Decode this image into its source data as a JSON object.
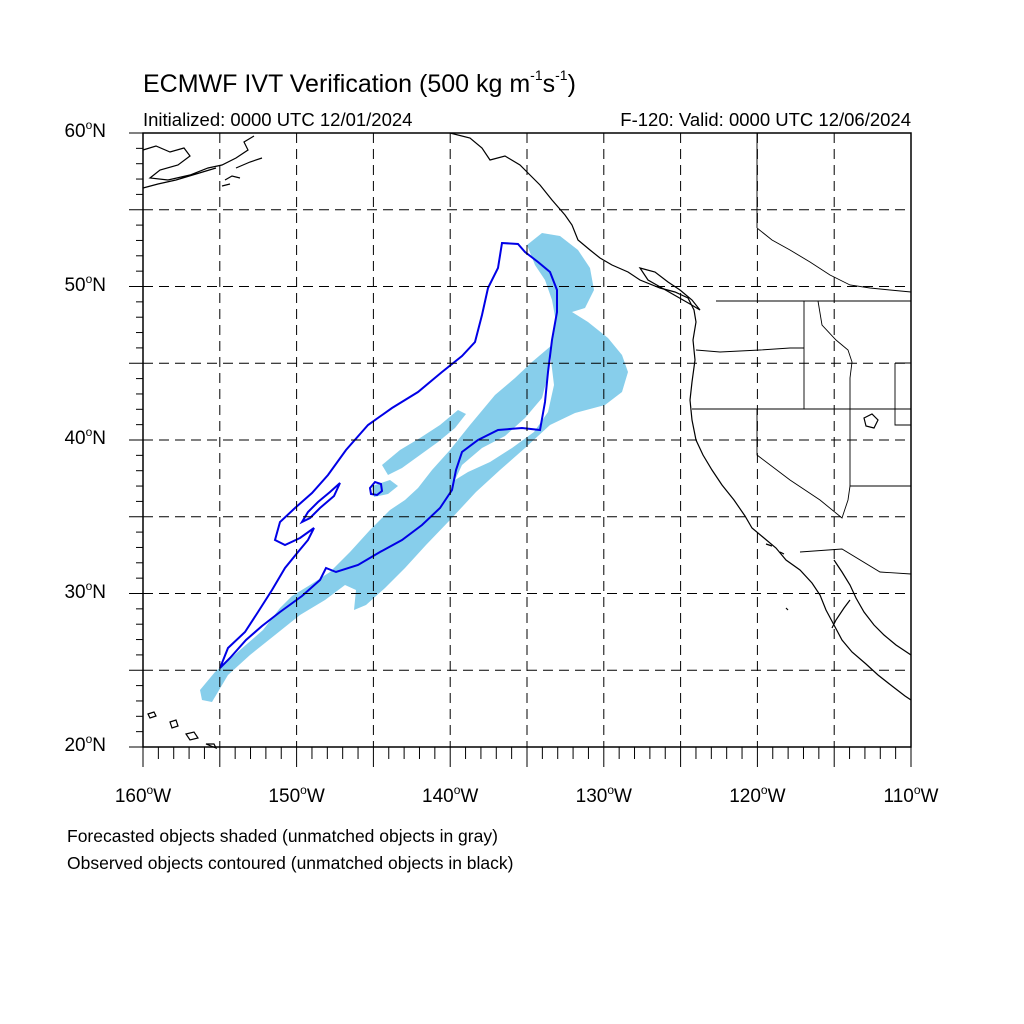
{
  "title": {
    "main": "ECMWF IVT Verification (500 kg m",
    "exp1": "-1",
    "mid": "s",
    "exp2": "-1",
    "close": ")"
  },
  "subtitle": {
    "initialized": "Initialized: 0000 UTC 12/01/2024",
    "valid": "F-120: Valid: 0000 UTC 12/06/2024"
  },
  "map": {
    "lon_range": [
      -160,
      -110
    ],
    "lat_range": [
      20,
      60
    ],
    "grid": "dashed",
    "y_ticks": [
      {
        "num": "20",
        "suffix": "N"
      },
      {
        "num": "30",
        "suffix": "N"
      },
      {
        "num": "40",
        "suffix": "N"
      },
      {
        "num": "50",
        "suffix": "N"
      },
      {
        "num": "60",
        "suffix": "N"
      }
    ],
    "x_ticks": [
      {
        "num": "160",
        "suffix": "W"
      },
      {
        "num": "150",
        "suffix": "W"
      },
      {
        "num": "140",
        "suffix": "W"
      },
      {
        "num": "130",
        "suffix": "W"
      },
      {
        "num": "120",
        "suffix": "W"
      },
      {
        "num": "110",
        "suffix": "W"
      }
    ],
    "colors": {
      "forecast_fill": "#87ceeb",
      "observed_contour": "#0000e6",
      "coastline": "#000000",
      "grid": "#000000"
    }
  },
  "notes": {
    "line1": "Forecasted objects shaded (unmatched objects in gray)",
    "line2": "Observed objects contoured (unmatched objects in black)"
  }
}
